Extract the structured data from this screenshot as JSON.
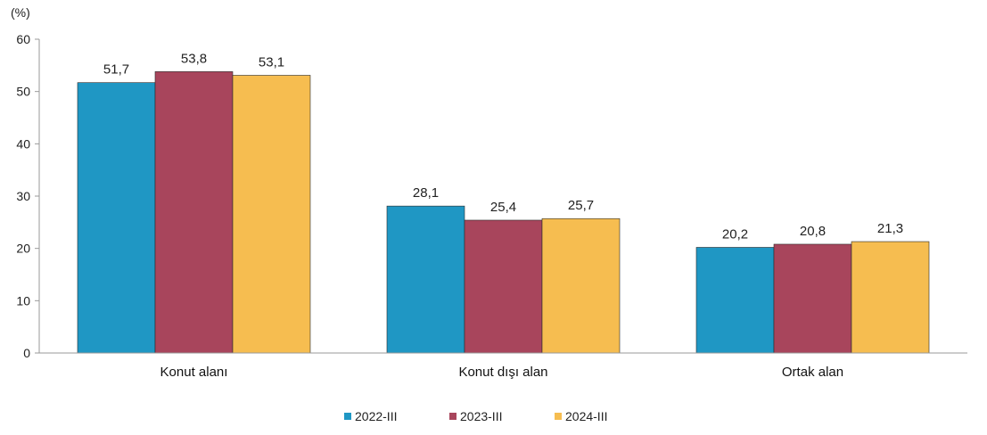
{
  "chart_data": {
    "type": "bar",
    "title": "",
    "xlabel": "",
    "ylabel": "(%)",
    "ylim": [
      0,
      60
    ],
    "yticks": [
      0,
      10,
      20,
      30,
      40,
      50,
      60
    ],
    "grid": false,
    "legend_position": "bottom-center",
    "categories": [
      "Konut alanı",
      "Konut dışı alan",
      "Ortak alan"
    ],
    "series": [
      {
        "name": "2022-III",
        "color": "#1f97c4",
        "values": [
          51.7,
          28.1,
          20.2
        ],
        "labels": [
          "51,7",
          "28,1",
          "20,2"
        ]
      },
      {
        "name": "2023-III",
        "color": "#a8455c",
        "values": [
          53.8,
          25.4,
          20.8
        ],
        "labels": [
          "53,8",
          "25,4",
          "20,8"
        ]
      },
      {
        "name": "2024-III",
        "color": "#f6bd50",
        "values": [
          53.1,
          25.7,
          21.3
        ],
        "labels": [
          "53,1",
          "25,7",
          "21,3"
        ]
      }
    ]
  }
}
